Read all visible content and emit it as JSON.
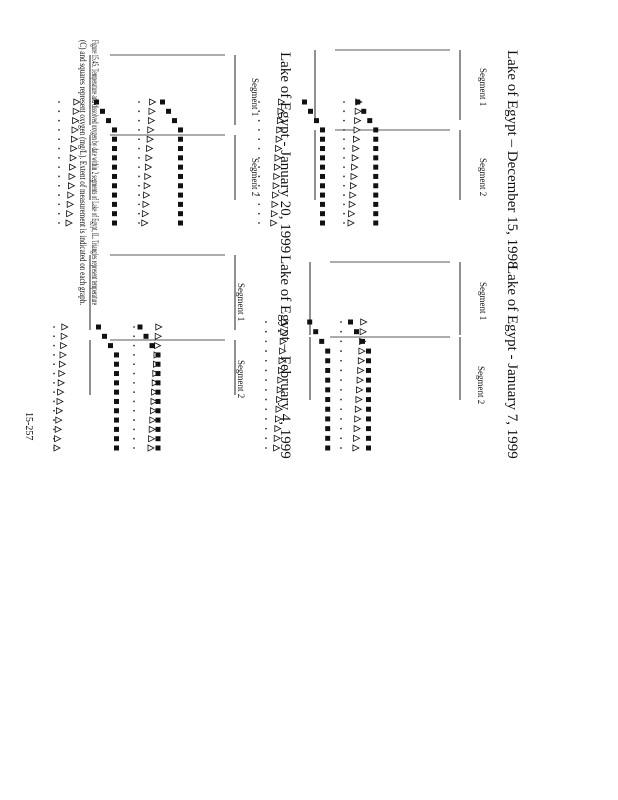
{
  "page": {
    "figures": [
      {
        "title": "Lake of Egypt – December 15, 1998",
        "segments": [
          "Segment 1",
          "Segment 2"
        ]
      },
      {
        "title": "Lake of Egypt - January 7, 1999",
        "segments": [
          "Segment 1",
          "Segment 2"
        ]
      },
      {
        "title": "Lake of Egypt - January 20, 1999",
        "segments": [
          "Segment 1",
          "Segment 2"
        ]
      },
      {
        "title": "Lake of Egypt – February 4, 1999",
        "segments": [
          "Segment 1",
          "Segment 2"
        ]
      }
    ],
    "caption": [
      "Figure 15.45. Temperature and dissolved oxygen by date within 2 segments of Lake of Egypt, IL. Triangles represent temperature",
      "(C) and squares represent oxygen (mg/L). Extent of measurement is indicated on each graph."
    ],
    "page_number": "15-257"
  }
}
